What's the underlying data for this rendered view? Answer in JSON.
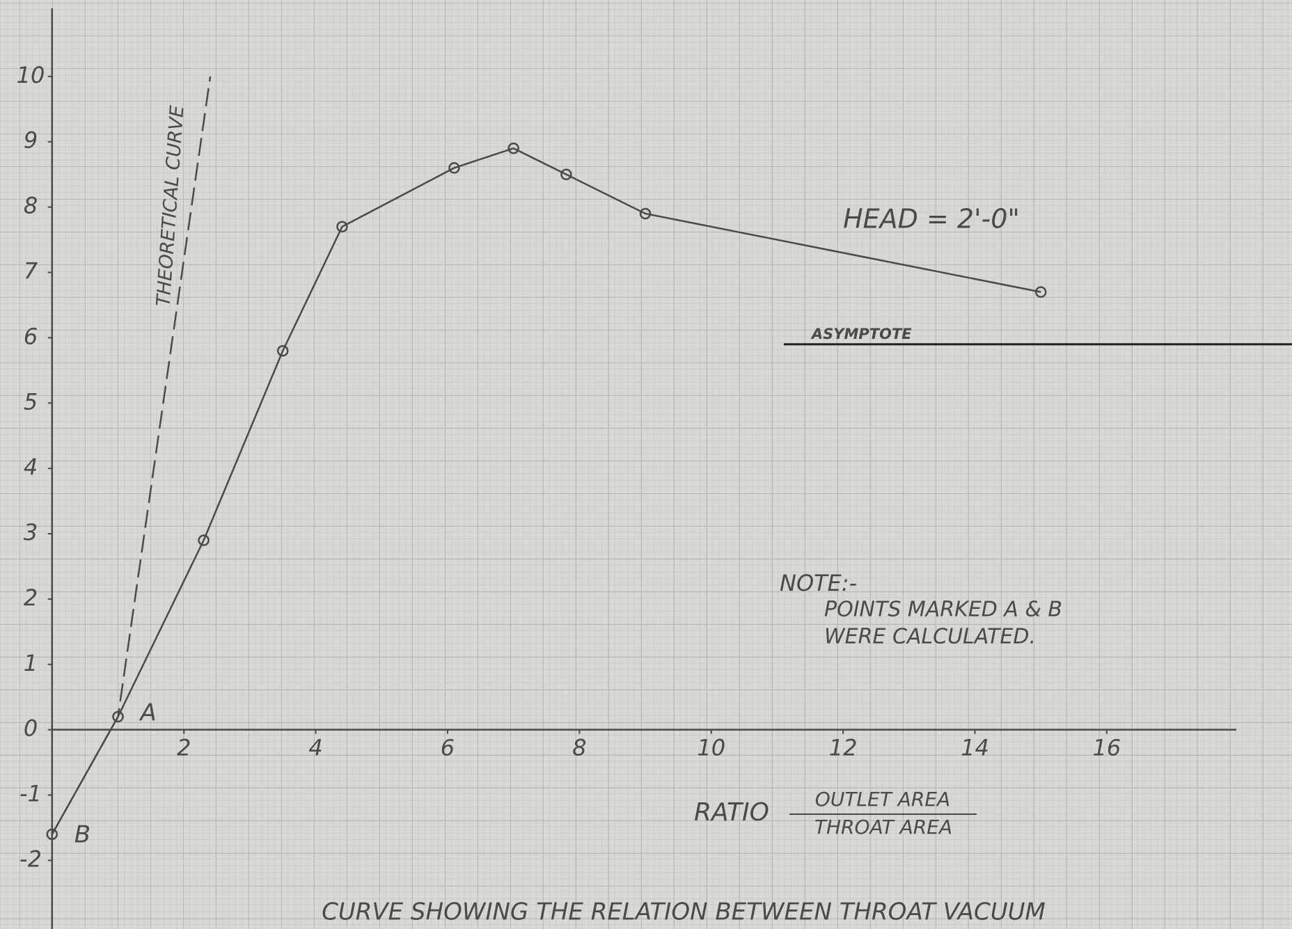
{
  "chart_data": {
    "type": "line",
    "title": "CURVE SHOWING THE RELATION BETWEEN THROAT VACUUM",
    "x_label": {
      "prefix": "RATIO",
      "numerator": "OUTLET AREA",
      "denominator": "THROAT AREA"
    },
    "xlim": [
      -0.79,
      18.81
    ],
    "ylim": [
      -3.05,
      11.17
    ],
    "xticks": [
      2,
      4,
      6,
      8,
      10,
      12,
      14,
      16
    ],
    "yticks": [
      -2,
      -1,
      0,
      1,
      2,
      3,
      4,
      5,
      6,
      7,
      8,
      9,
      10
    ],
    "series": [
      {
        "name": "HEAD = 2'-0\"",
        "color": "#4a4a4a",
        "marker": true,
        "dashed": false,
        "x": [
          0,
          1,
          2.3,
          3.5,
          4.4,
          6.1,
          7.0,
          7.8,
          9.0,
          15.0
        ],
        "values": [
          -1.6,
          0.2,
          2.9,
          5.8,
          7.7,
          8.6,
          8.9,
          8.5,
          7.9,
          6.7
        ],
        "point_labels": [
          "B",
          "A",
          null,
          null,
          null,
          null,
          null,
          null,
          null,
          null
        ]
      },
      {
        "name": "THEORETICAL CURVE",
        "color": "#4a4a4a",
        "marker": false,
        "dashed": true,
        "x": [
          0,
          1,
          2.4
        ],
        "values": [
          -1.6,
          0.2,
          10
        ]
      }
    ],
    "asymptote": {
      "label": "ASYMPTOTE",
      "y": 5.9,
      "x_start": 11.1
    },
    "note": {
      "title": "NOTE:-",
      "lines": [
        "POINTS MARKED A & B",
        "WERE CALCULATED."
      ]
    }
  }
}
